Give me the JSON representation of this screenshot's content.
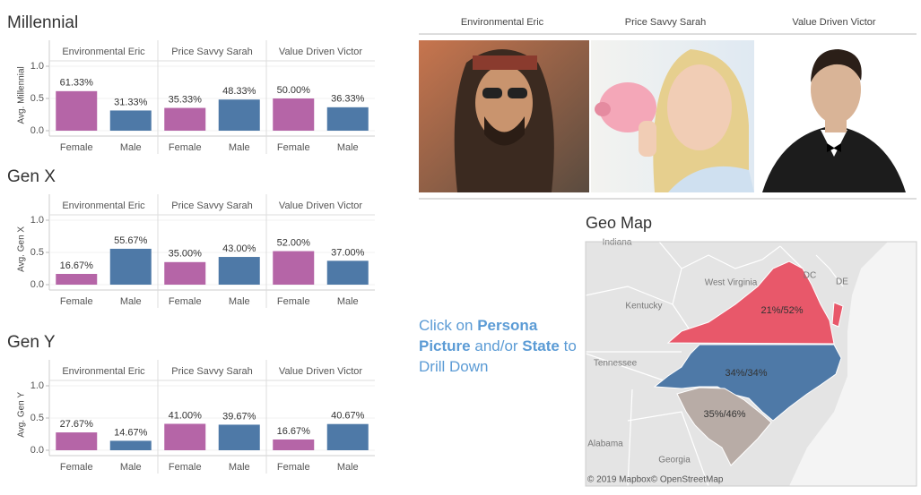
{
  "chart_data": [
    {
      "type": "bar",
      "title": "Millennial",
      "y_label": "Avg. Millennial",
      "categories": [
        "Female",
        "Male"
      ],
      "colors": [
        "#b565a7",
        "#4e79a7"
      ],
      "series": [
        {
          "name": "Environmental Eric",
          "values": [
            0.6133,
            0.3133
          ],
          "value_labels": [
            "61.33%",
            "31.33%"
          ]
        },
        {
          "name": "Price Savvy Sarah",
          "values": [
            0.3533,
            0.4833
          ],
          "value_labels": [
            "35.33%",
            "48.33%"
          ]
        },
        {
          "name": "Value Driven Victor",
          "values": [
            0.5,
            0.3633
          ],
          "value_labels": [
            "50.00%",
            "36.33%"
          ]
        }
      ],
      "ylim": [
        0,
        1.1
      ],
      "yticks": [
        {
          "value": 0,
          "label": "0.0"
        },
        {
          "value": 0.5,
          "label": "0.5"
        },
        {
          "value": 1,
          "label": "1.0"
        }
      ],
      "grid": true
    },
    {
      "type": "bar",
      "title": "Gen X",
      "y_label": "Avg. Gen X",
      "categories": [
        "Female",
        "Male"
      ],
      "colors": [
        "#b565a7",
        "#4e79a7"
      ],
      "series": [
        {
          "name": "Environmental Eric",
          "values": [
            0.1667,
            0.5567
          ],
          "value_labels": [
            "16.67%",
            "55.67%"
          ]
        },
        {
          "name": "Price Savvy Sarah",
          "values": [
            0.35,
            0.43
          ],
          "value_labels": [
            "35.00%",
            "43.00%"
          ]
        },
        {
          "name": "Value Driven Victor",
          "values": [
            0.52,
            0.37
          ],
          "value_labels": [
            "52.00%",
            "37.00%"
          ]
        }
      ],
      "ylim": [
        0,
        1.1
      ],
      "yticks": [
        {
          "value": 0,
          "label": "0.0"
        },
        {
          "value": 0.5,
          "label": "0.5"
        },
        {
          "value": 1,
          "label": "1.0"
        }
      ],
      "grid": true
    },
    {
      "type": "bar",
      "title": "Gen Y",
      "y_label": "Avg. Gen Y",
      "categories": [
        "Female",
        "Male"
      ],
      "colors": [
        "#b565a7",
        "#4e79a7"
      ],
      "series": [
        {
          "name": "Environmental Eric",
          "values": [
            0.2767,
            0.1467
          ],
          "value_labels": [
            "27.67%",
            "14.67%"
          ]
        },
        {
          "name": "Price Savvy Sarah",
          "values": [
            0.41,
            0.3967
          ],
          "value_labels": [
            "41.00%",
            "39.67%"
          ]
        },
        {
          "name": "Value Driven Victor",
          "values": [
            0.1667,
            0.4067
          ],
          "value_labels": [
            "16.67%",
            "40.67%"
          ]
        }
      ],
      "ylim": [
        0,
        1.1
      ],
      "yticks": [
        {
          "value": 0,
          "label": "0.0"
        },
        {
          "value": 0.5,
          "label": "0.5"
        },
        {
          "value": 1,
          "label": "1.0"
        }
      ],
      "grid": true
    }
  ],
  "personas": [
    "Environmental Eric",
    "Price Savvy Sarah",
    "Value Driven Victor"
  ],
  "instruction": [
    [
      {
        "text": "Click on ",
        "bold": false
      },
      {
        "text": "Persona",
        "bold": true
      }
    ],
    [
      {
        "text": "Picture",
        "bold": true
      },
      {
        "text": " and/or ",
        "bold": false
      },
      {
        "text": "State",
        "bold": true
      },
      {
        "text": " to",
        "bold": false
      }
    ],
    [
      {
        "text": "Drill Down",
        "bold": false
      }
    ]
  ],
  "geo_map": {
    "title": "Geo Map",
    "state_labels": [
      "21%/52%",
      "34%/34%",
      "35%/46%"
    ],
    "place_labels": [
      "Indiana",
      "West Virginia",
      "Kentucky",
      "Tennessee",
      "Alabama",
      "Georgia",
      "DC",
      "DE"
    ],
    "attribution": "© 2019 Mapbox© OpenStreetMap"
  }
}
